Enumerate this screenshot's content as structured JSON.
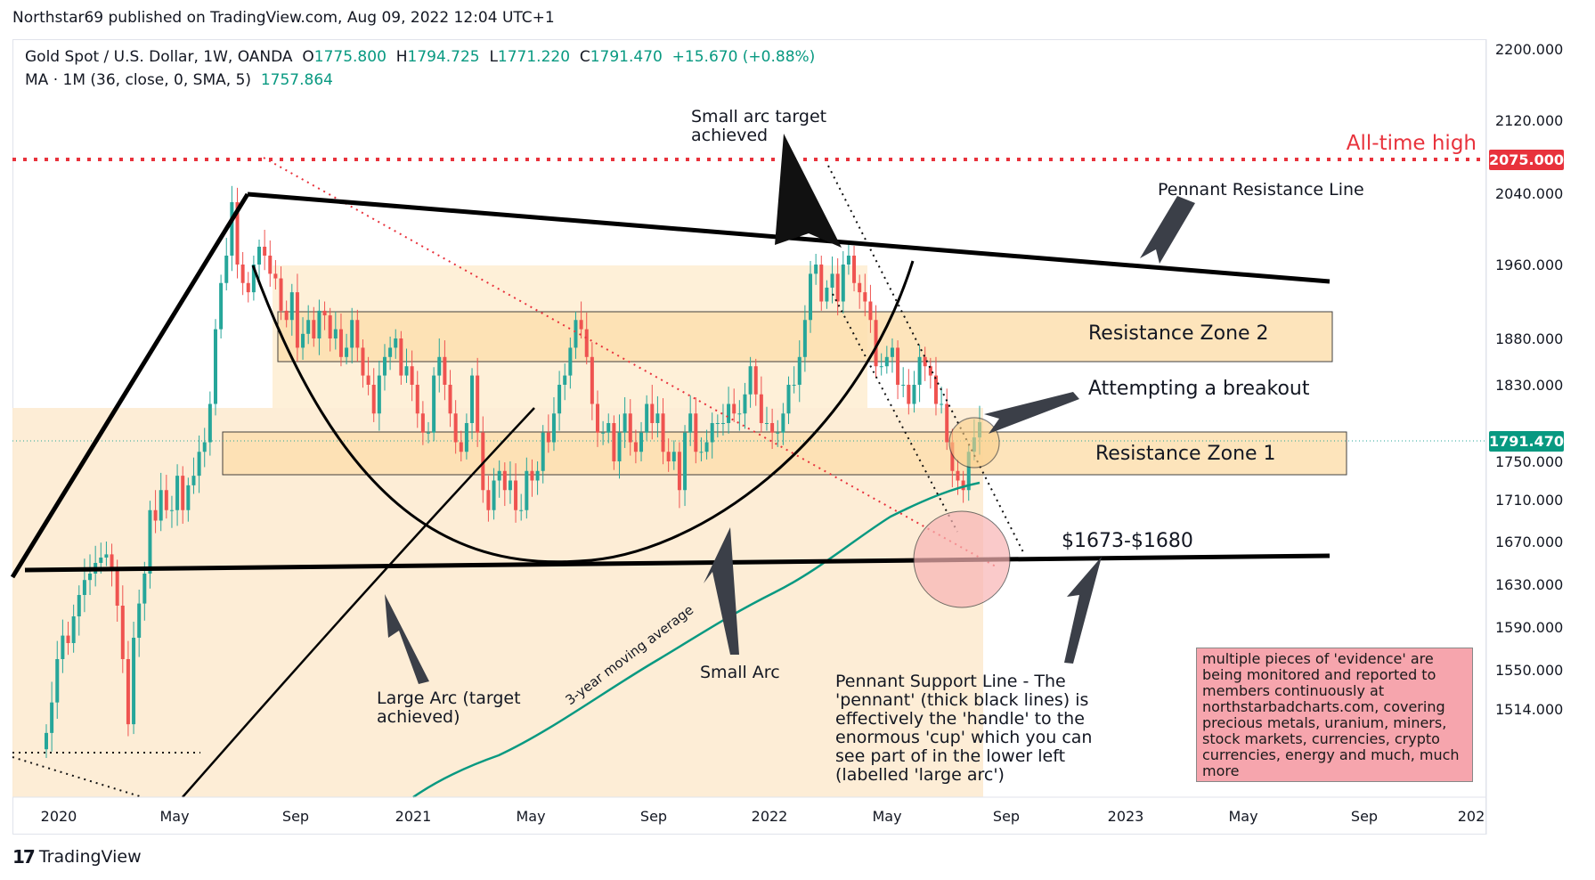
{
  "header": {
    "published": "Northstar69 published on TradingView.com, Aug 09, 2022 12:04 UTC+1"
  },
  "legend": {
    "symbol": "Gold Spot / U.S. Dollar, 1W, OANDA",
    "o_label": "O",
    "o": "1775.800",
    "h_label": "H",
    "h": "1794.725",
    "l_label": "L",
    "l": "1771.220",
    "c_label": "C",
    "c": "1791.470",
    "change": "+15.670 (+0.88%)",
    "ma_label": "MA · 1M (36, close, 0, SMA, 5)",
    "ma_value": "1757.864"
  },
  "footer": {
    "brand": "TradingView"
  },
  "colors": {
    "up": "#26a69a",
    "down": "#ef5350",
    "ma": "#089981",
    "ath": "#e8323c",
    "zone": "#fde3b8",
    "zone_bg": "#fdebd2",
    "price_tag": "#089981"
  },
  "annotations": {
    "small_arc_target": [
      "Small arc target",
      "achieved"
    ],
    "all_time_high": "All-time high",
    "pennant_resistance": "Pennant Resistance Line",
    "resistance_zone_2": "Resistance Zone 2",
    "attempting_breakout": "Attempting a breakout",
    "resistance_zone_1": "Resistance Zone 1",
    "support_range": "$1673-$1680",
    "large_arc": [
      "Large Arc (target",
      "achieved)"
    ],
    "small_arc": "Small Arc",
    "moving_average": "3-year moving average",
    "pennant_support": [
      "Pennant Support Line - The",
      "'pennant' (thick black lines) is",
      "effectively the 'handle' to the",
      "enormous 'cup' which you can",
      "see part of in the lower left",
      "(labelled 'large arc')"
    ],
    "info_box": [
      "multiple pieces of 'evidence' are",
      "being monitored and reported to",
      "members continuously at",
      "northstarbadcharts.com, covering",
      "precious metals, uranium, miners,",
      "stock markets, currencies, crypto",
      "currencies, energy and much, much",
      "more"
    ]
  },
  "chart_data": {
    "type": "candlestick",
    "title": "Gold Spot / U.S. Dollar, 1W, OANDA",
    "x_ticks": [
      "2020",
      "May",
      "Sep",
      "2021",
      "May",
      "Sep",
      "2022",
      "May",
      "Sep",
      "2023",
      "May",
      "Sep",
      "202"
    ],
    "y_ticks": [
      2200,
      2120,
      2040,
      1960,
      1880,
      1830,
      1750,
      1710,
      1670,
      1630,
      1590,
      1550,
      1514
    ],
    "y_tick_labels": [
      "2200.000",
      "2120.000",
      "2040.000",
      "1960.000",
      "1880.000",
      "1830.000",
      "1750.000",
      "1710.000",
      "1670.000",
      "1630.000",
      "1590.000",
      "1550.000",
      "1514.000"
    ],
    "ylim": [
      1480,
      2215
    ],
    "price_tags": [
      {
        "label": "2075.000",
        "value": 2075,
        "kind": "ath"
      },
      {
        "label": "1791.470",
        "value": 1791.47,
        "kind": "last"
      }
    ],
    "closes": [
      1492,
      1520,
      1560,
      1582,
      1575,
      1600,
      1620,
      1634,
      1640,
      1650,
      1655,
      1658,
      1645,
      1610,
      1560,
      1500,
      1580,
      1612,
      1640,
      1700,
      1690,
      1720,
      1700,
      1700,
      1735,
      1700,
      1725,
      1735,
      1760,
      1770,
      1810,
      1890,
      1940,
      1970,
      2030,
      1960,
      1940,
      1930,
      1960,
      1980,
      1970,
      1950,
      1945,
      1910,
      1900,
      1930,
      1870,
      1885,
      1900,
      1880,
      1910,
      1905,
      1880,
      1890,
      1860,
      1870,
      1900,
      1870,
      1840,
      1830,
      1800,
      1840,
      1860,
      1870,
      1880,
      1840,
      1850,
      1830,
      1800,
      1780,
      1780,
      1840,
      1860,
      1830,
      1800,
      1770,
      1760,
      1790,
      1840,
      1780,
      1720,
      1700,
      1730,
      1740,
      1720,
      1730,
      1700,
      1700,
      1740,
      1730,
      1740,
      1780,
      1770,
      1800,
      1830,
      1840,
      1870,
      1900,
      1890,
      1860,
      1810,
      1780,
      1780,
      1790,
      1750,
      1780,
      1800,
      1770,
      1760,
      1780,
      1810,
      1790,
      1800,
      1760,
      1750,
      1760,
      1720,
      1780,
      1800,
      1760,
      1760,
      1770,
      1790,
      1790,
      1790,
      1810,
      1800,
      1800,
      1820,
      1850,
      1820,
      1790,
      1790,
      1780,
      1780,
      1800,
      1830,
      1830,
      1860,
      1900,
      1950,
      1960,
      1920,
      1935,
      1950,
      1920,
      1960,
      1970,
      1940,
      1930,
      1920,
      1900,
      1850,
      1850,
      1860,
      1870,
      1830,
      1830,
      1810,
      1830,
      1860,
      1850,
      1840,
      1810,
      1810,
      1770,
      1740,
      1730,
      1720,
      1760,
      1775,
      1791
    ],
    "ma_36m": {
      "name": "MA · 1M (36, close, 0, SMA, 5)",
      "last": 1757.864
    }
  }
}
